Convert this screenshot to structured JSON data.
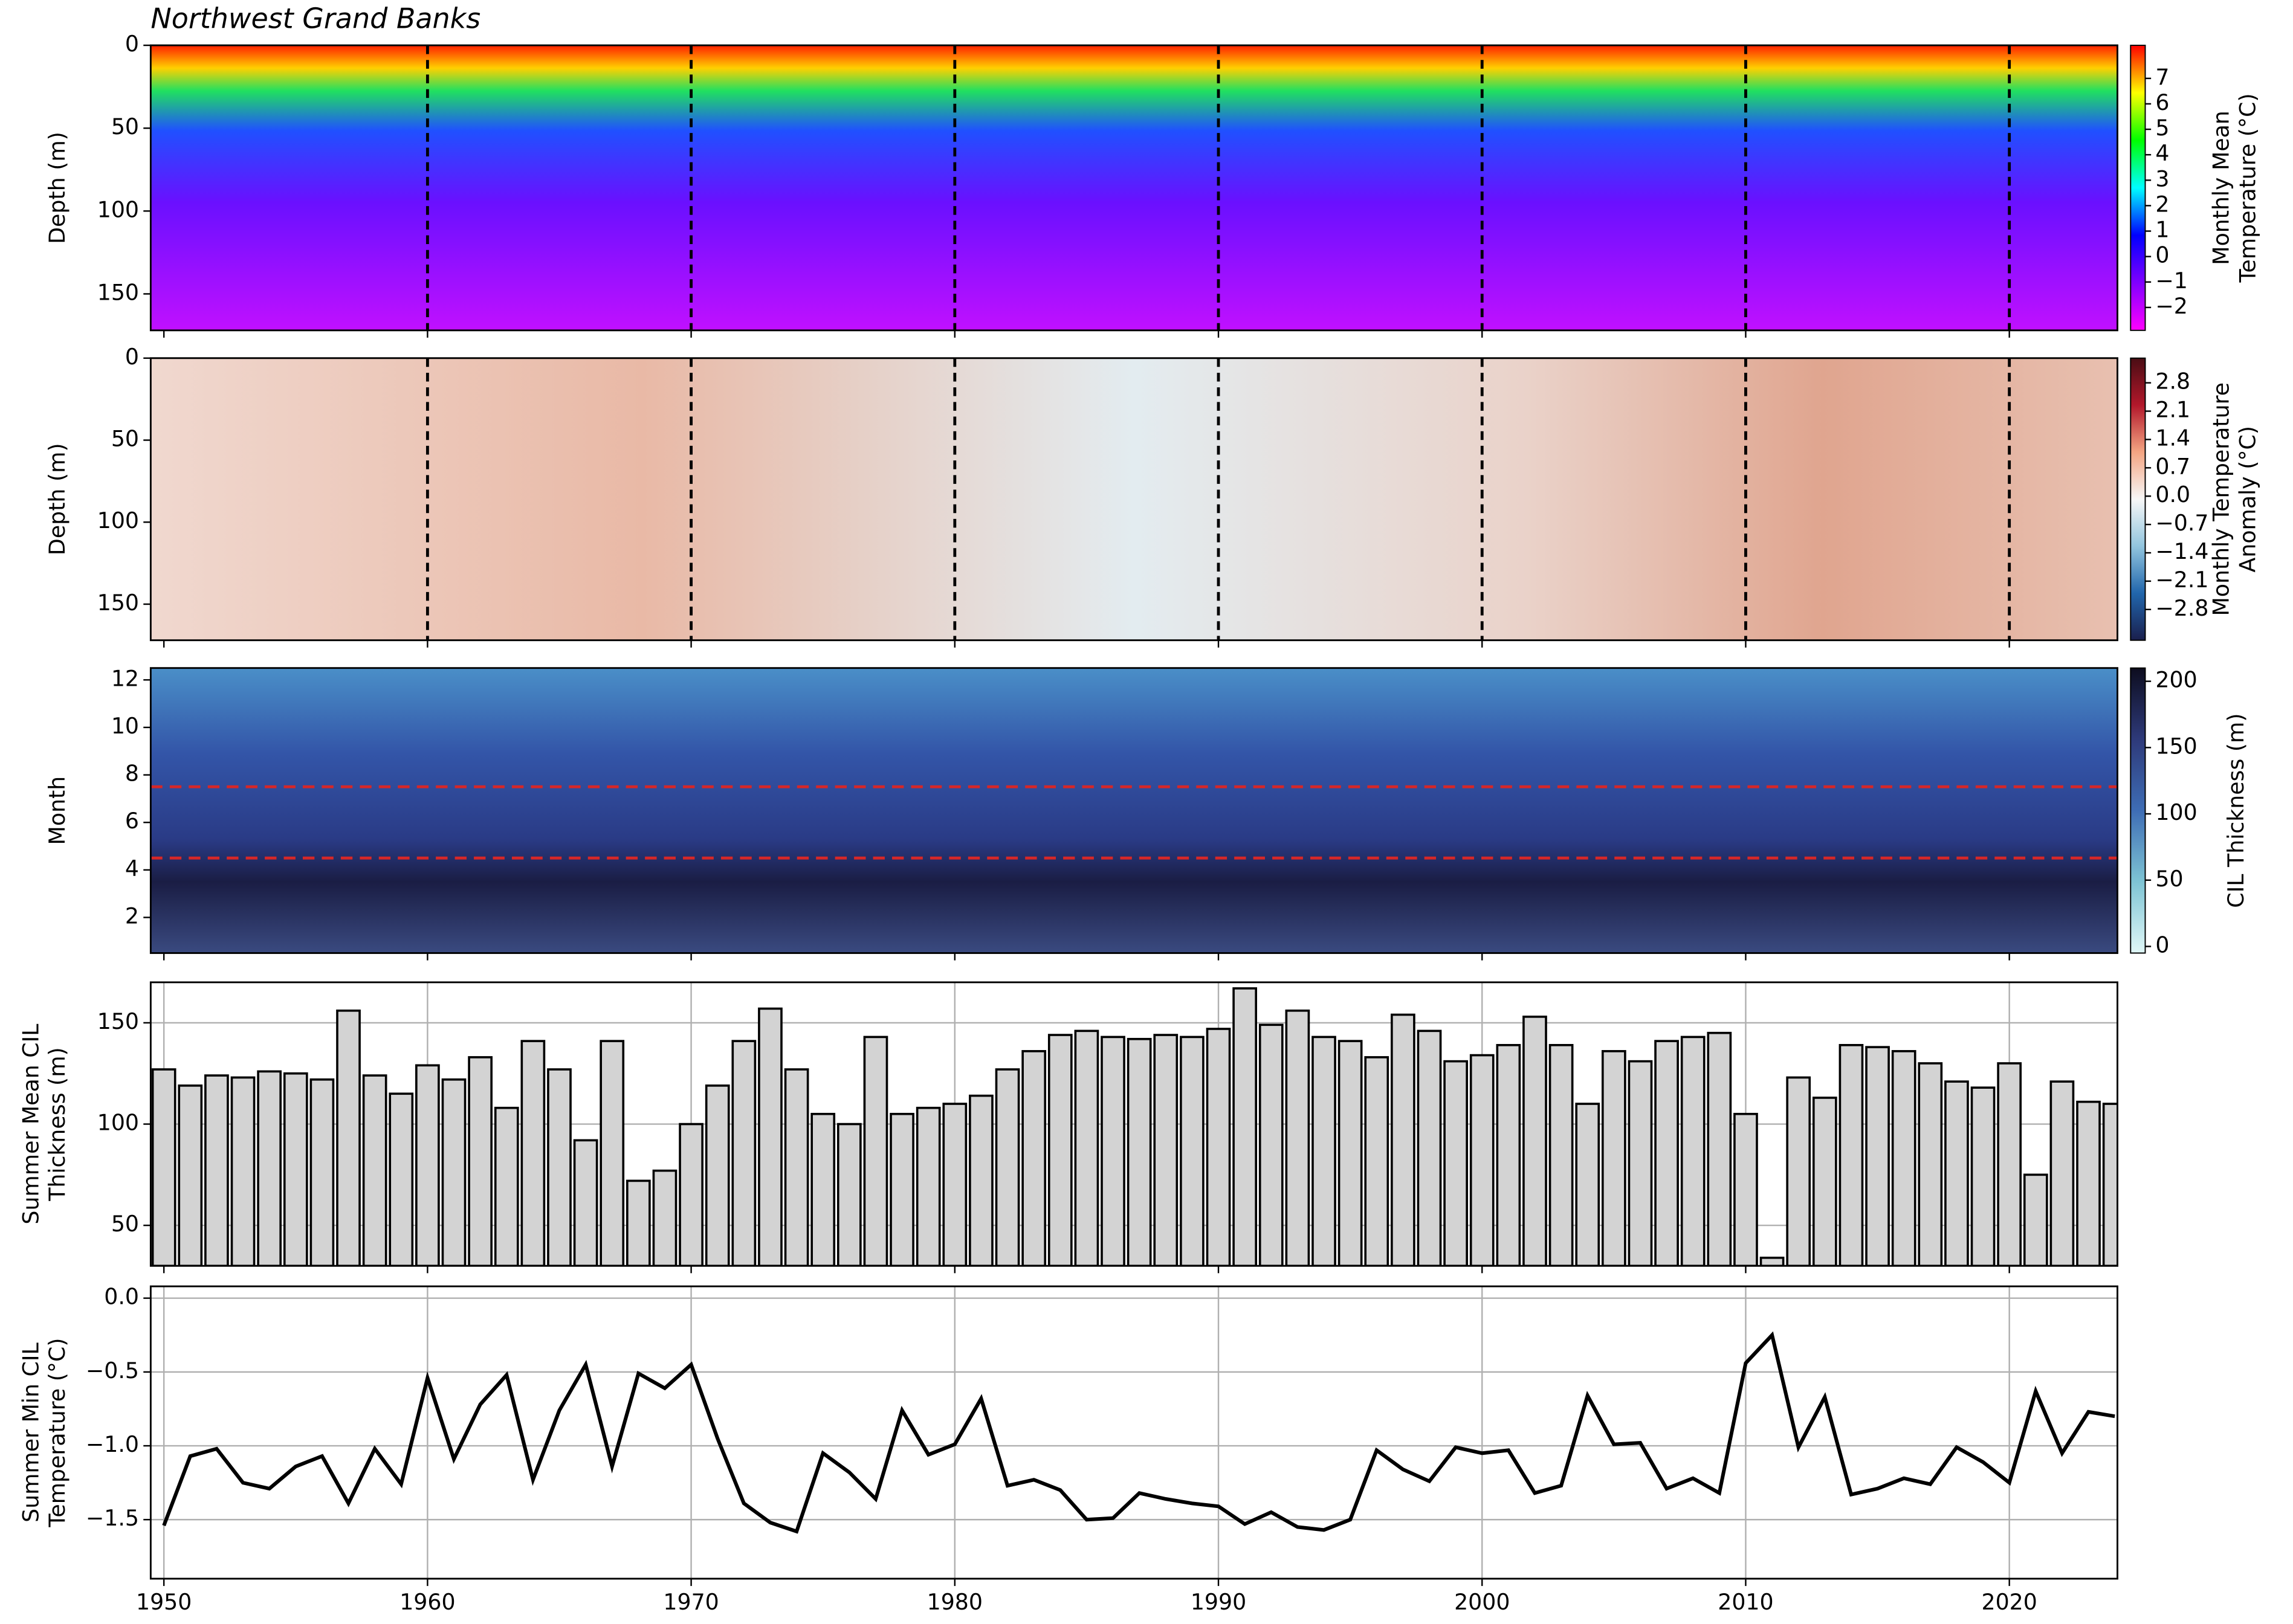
{
  "chart_data": [
    {
      "type": "heatmap",
      "title": "Northwest Grand Banks",
      "ylabel": [
        "Depth (m)"
      ],
      "xlim": [
        1949.5,
        2024.1
      ],
      "xticks": [
        1950,
        1960,
        1970,
        1980,
        1990,
        2000,
        2010,
        2020
      ],
      "ylim": [
        172,
        0
      ],
      "yticks": [
        0,
        50,
        100,
        150
      ],
      "vlines": [
        1960,
        1970,
        1980,
        1990,
        2000,
        2010,
        2020
      ],
      "colormap": [
        "#ff00ff",
        "#8000ff",
        "#0000ff",
        "#00ffff",
        "#00ff00",
        "#ffff00",
        "#ff0000"
      ],
      "cbar_lim": [
        -2.9,
        8.3
      ],
      "cbar_ticks": [
        {
          "value": -2,
          "label": "−2"
        },
        {
          "value": -1,
          "label": "−1"
        },
        0,
        1,
        2,
        3,
        4,
        5,
        6,
        7
      ],
      "cbar_label": [
        "Monthly Mean",
        "Temperature (°C)"
      ]
    },
    {
      "type": "heatmap",
      "ylabel": [
        "Depth (m)"
      ],
      "xlim": [
        1949.5,
        2024.1
      ],
      "xticks": [
        1950,
        1960,
        1970,
        1980,
        1990,
        2000,
        2010,
        2020
      ],
      "ylim": [
        172,
        0
      ],
      "yticks": [
        0,
        50,
        100,
        150
      ],
      "vlines": [
        1960,
        1970,
        1980,
        1990,
        2000,
        2010,
        2020
      ],
      "colormap": [
        "#1a1f4d",
        "#2166ac",
        "#92c5de",
        "#f7f7f7",
        "#f4a582",
        "#b2182b",
        "#4a0d14"
      ],
      "cbar_lim": [
        -3.56,
        3.41
      ],
      "cbar_ticks": [
        {
          "value": -2.8,
          "label": "−2.8"
        },
        {
          "value": -2.1,
          "label": "−2.1"
        },
        {
          "value": -1.4,
          "label": "−1.4"
        },
        {
          "value": -0.7,
          "label": "−0.7"
        },
        {
          "value": 0,
          "label": "0.0"
        },
        0.7,
        1.4,
        2.1,
        2.8
      ],
      "cbar_label": [
        "Monthly Temperature",
        "Anomaly (°C)"
      ]
    },
    {
      "type": "heatmap",
      "ylabel": [
        "Month"
      ],
      "xlim": [
        1949.5,
        2024.1
      ],
      "xticks": [
        1950,
        1960,
        1970,
        1980,
        1990,
        2000,
        2010,
        2020
      ],
      "ylim": [
        0.5,
        12.5
      ],
      "yticks": [
        2,
        4,
        6,
        8,
        10,
        12
      ],
      "hlines": [
        4.5,
        7.5
      ],
      "colormap": [
        "#e0f7f7",
        "#7ec4d4",
        "#3e6db5",
        "#2e3a7a",
        "#0d0d1f"
      ],
      "cbar_lim": [
        -5,
        210
      ],
      "cbar_ticks": [
        0,
        50,
        100,
        150,
        200
      ],
      "cbar_label": [
        "CIL Thickness (m)"
      ]
    },
    {
      "type": "bar",
      "ylabel": [
        "Summer Mean CIL",
        "Thickness (m)"
      ],
      "xlim": [
        1949.5,
        2024.1
      ],
      "xticks": [
        1950,
        1960,
        1970,
        1980,
        1990,
        2000,
        2010,
        2020
      ],
      "ylim": [
        30,
        170
      ],
      "yticks": [
        50,
        100,
        150
      ],
      "grid": true,
      "color": "#d3d3d3",
      "edgecolor": "#000000",
      "x": [
        1950,
        1951,
        1952,
        1953,
        1954,
        1955,
        1956,
        1957,
        1958,
        1959,
        1960,
        1961,
        1962,
        1963,
        1964,
        1965,
        1966,
        1967,
        1968,
        1969,
        1970,
        1971,
        1972,
        1973,
        1974,
        1975,
        1976,
        1977,
        1978,
        1979,
        1980,
        1981,
        1982,
        1983,
        1984,
        1985,
        1986,
        1987,
        1988,
        1989,
        1990,
        1991,
        1992,
        1993,
        1994,
        1995,
        1996,
        1997,
        1998,
        1999,
        2000,
        2001,
        2002,
        2003,
        2004,
        2005,
        2006,
        2007,
        2008,
        2009,
        2010,
        2011,
        2012,
        2013,
        2014,
        2015,
        2016,
        2017,
        2018,
        2019,
        2020,
        2021,
        2022,
        2023,
        2024
      ],
      "values": [
        127,
        119,
        124,
        123,
        126,
        125,
        122,
        156,
        124,
        115,
        129,
        122,
        133,
        108,
        141,
        127,
        92,
        141,
        72,
        77,
        100,
        119,
        141,
        157,
        127,
        105,
        100,
        143,
        105,
        108,
        110,
        114,
        127,
        136,
        144,
        146,
        143,
        142,
        144,
        143,
        147,
        167,
        149,
        156,
        143,
        141,
        133,
        154,
        146,
        131,
        134,
        139,
        153,
        139,
        110,
        136,
        131,
        141,
        143,
        145,
        105,
        34,
        123,
        113,
        139,
        138,
        136,
        130,
        121,
        118,
        130,
        75,
        121,
        111,
        110
      ]
    },
    {
      "type": "line",
      "ylabel": [
        "Summer Min CIL",
        "Temperature (°C)"
      ],
      "xlim": [
        1949.5,
        2024.1
      ],
      "xticks": [
        1950,
        1960,
        1970,
        1980,
        1990,
        2000,
        2010,
        2020
      ],
      "ylim": [
        -1.9,
        0.08
      ],
      "yticks": [
        {
          "value": -1.5,
          "label": "−1.5"
        },
        {
          "value": -1,
          "label": "−1.0"
        },
        {
          "value": -0.5,
          "label": "−0.5"
        },
        {
          "value": 0,
          "label": "0.0"
        }
      ],
      "grid": true,
      "color": "#000000",
      "x": [
        1950,
        1951,
        1952,
        1953,
        1954,
        1955,
        1956,
        1957,
        1958,
        1959,
        1960,
        1961,
        1962,
        1963,
        1964,
        1965,
        1966,
        1967,
        1968,
        1969,
        1970,
        1971,
        1972,
        1973,
        1974,
        1975,
        1976,
        1977,
        1978,
        1979,
        1980,
        1981,
        1982,
        1983,
        1984,
        1985,
        1986,
        1987,
        1988,
        1989,
        1990,
        1991,
        1992,
        1993,
        1994,
        1995,
        1996,
        1997,
        1998,
        1999,
        2000,
        2001,
        2002,
        2003,
        2004,
        2005,
        2006,
        2007,
        2008,
        2009,
        2010,
        2011,
        2012,
        2013,
        2014,
        2015,
        2016,
        2017,
        2018,
        2019,
        2020,
        2021,
        2022,
        2023,
        2024
      ],
      "values": [
        -1.54,
        -1.07,
        -1.02,
        -1.25,
        -1.29,
        -1.14,
        -1.07,
        -1.39,
        -1.02,
        -1.26,
        -0.54,
        -1.09,
        -0.72,
        -0.52,
        -1.23,
        -0.76,
        -0.45,
        -1.14,
        -0.51,
        -0.61,
        -0.45,
        -0.95,
        -1.39,
        -1.52,
        -1.58,
        -1.05,
        -1.18,
        -1.36,
        -0.76,
        -1.06,
        -0.99,
        -0.68,
        -1.27,
        -1.23,
        -1.3,
        -1.5,
        -1.49,
        -1.32,
        -1.36,
        -1.39,
        -1.41,
        -1.53,
        -1.45,
        -1.55,
        -1.57,
        -1.5,
        -1.03,
        -1.16,
        -1.24,
        -1.01,
        -1.05,
        -1.03,
        -1.32,
        -1.27,
        -0.66,
        -0.99,
        -0.98,
        -1.29,
        -1.22,
        -1.32,
        -0.44,
        -0.25,
        -1.01,
        -0.67,
        -1.33,
        -1.29,
        -1.22,
        -1.26,
        -1.01,
        -1.11,
        -1.25,
        -0.63,
        -1.05,
        -0.77,
        -0.8
      ]
    }
  ]
}
